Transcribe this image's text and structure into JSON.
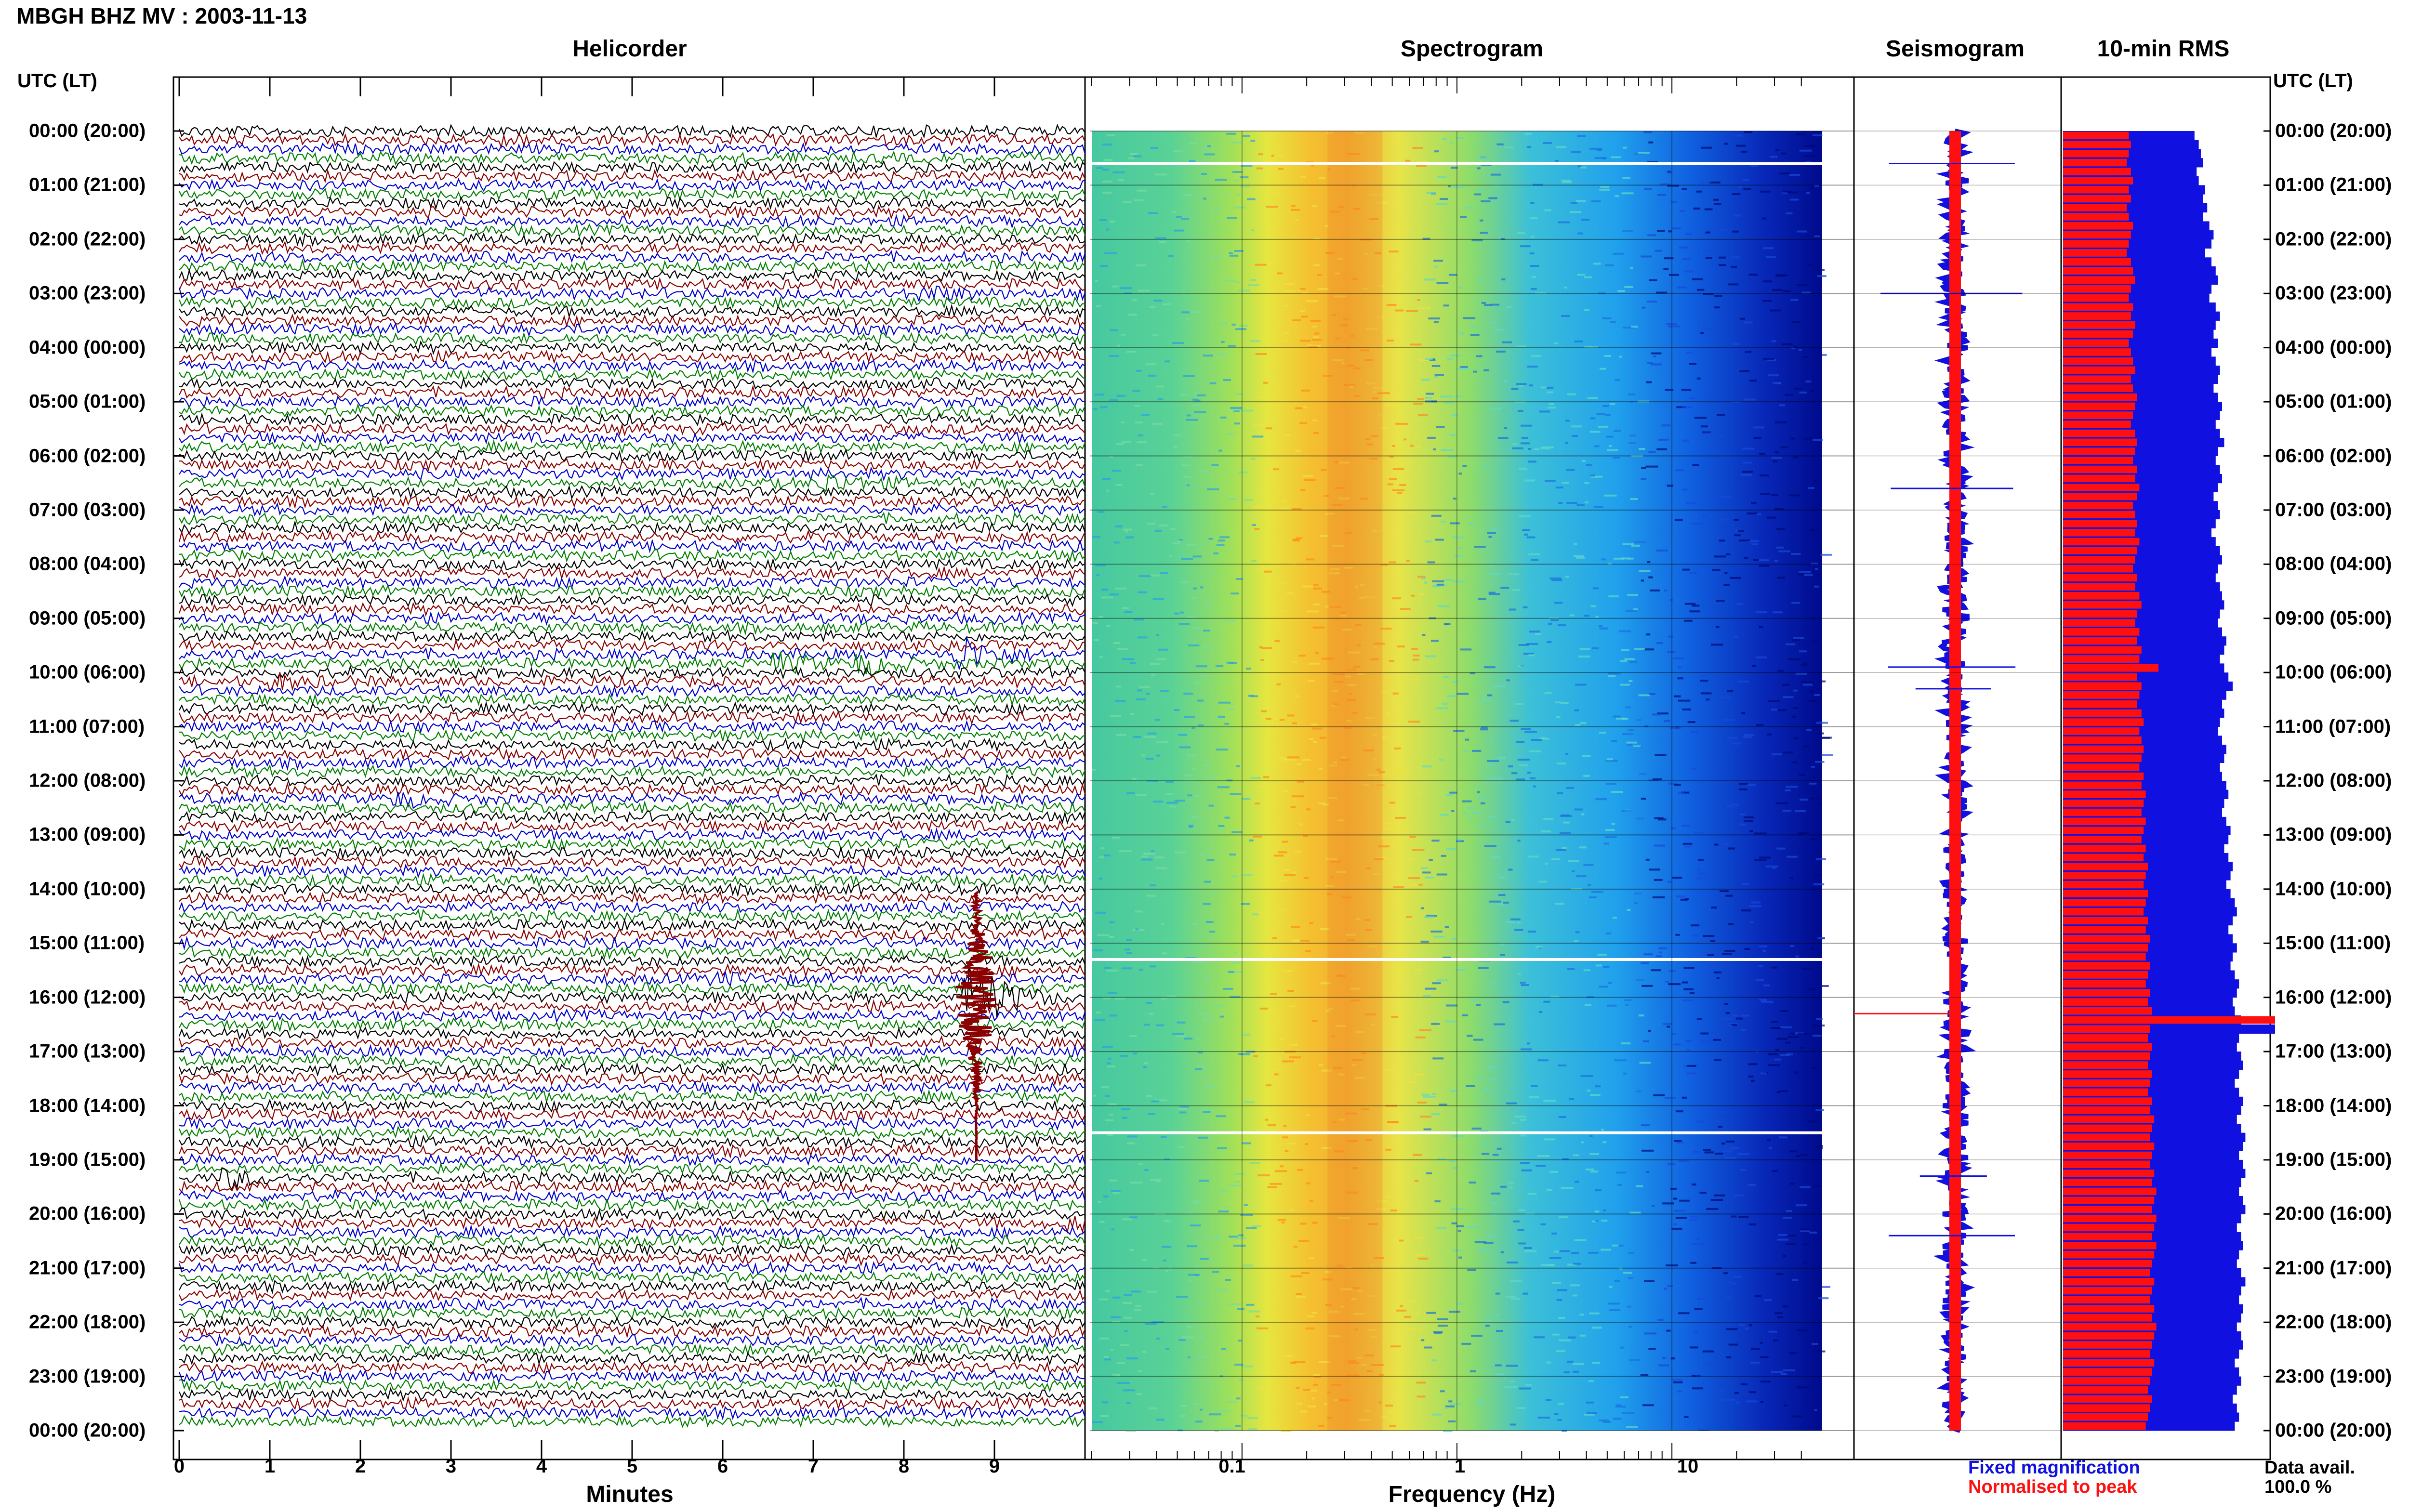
{
  "header": {
    "title": "MBGH BHZ MV : 2003-11-13",
    "panel_titles": {
      "helicorder": "Helicorder",
      "spectrogram": "Spectrogram",
      "seismogram": "Seismogram",
      "rms": "10-min RMS"
    },
    "time_axis_label_left": "UTC (LT)",
    "time_axis_label_right": "UTC (LT)"
  },
  "axes": {
    "helicorder_xlabel": "Minutes",
    "spectrogram_xlabel": "Frequency (Hz)",
    "minute_ticks": [
      "0",
      "1",
      "2",
      "3",
      "4",
      "5",
      "6",
      "7",
      "8",
      "9"
    ],
    "frequency_ticks": [
      "0.1",
      "1",
      "10"
    ]
  },
  "time_labels": [
    "00:00 (20:00)",
    "01:00 (21:00)",
    "02:00 (22:00)",
    "03:00 (23:00)",
    "04:00 (00:00)",
    "05:00 (01:00)",
    "06:00 (02:00)",
    "07:00 (03:00)",
    "08:00 (04:00)",
    "09:00 (05:00)",
    "10:00 (06:00)",
    "11:00 (07:00)",
    "12:00 (08:00)",
    "13:00 (09:00)",
    "14:00 (10:00)",
    "15:00 (11:00)",
    "16:00 (12:00)",
    "17:00 (13:00)",
    "18:00 (14:00)",
    "19:00 (15:00)",
    "20:00 (16:00)",
    "21:00 (17:00)",
    "22:00 (18:00)",
    "23:00 (19:00)",
    "00:00 (20:00)"
  ],
  "legend": {
    "fixed": "Fixed magnification",
    "normalised": "Normalised to peak",
    "fixed_color": "#1010e0",
    "normalised_color": "#ff1010",
    "data_avail_label": "Data avail.",
    "data_avail_value": "100.0 %"
  },
  "trace_colors": [
    "#000000",
    "#8b0000",
    "#0000cd",
    "#008000"
  ],
  "chart_data": [
    {
      "type": "line",
      "panel": "helicorder",
      "xlabel": "Minutes",
      "xlim": [
        0,
        10
      ],
      "rows": 144,
      "row_duration_minutes": 10,
      "events": [
        {
          "hour": 0.1,
          "minute": 3.6,
          "amplitude": 0.6
        },
        {
          "hour": 3.0,
          "minute": 8.3,
          "amplitude": 0.8
        },
        {
          "hour": 6.5,
          "minute": 7.2,
          "amplitude": 1.0
        },
        {
          "hour": 9.6,
          "minute": 8.7,
          "amplitude": 2.0
        },
        {
          "hour": 9.8,
          "minute": 6.7,
          "amplitude": 1.0
        },
        {
          "hour": 9.9,
          "minute": 7.6,
          "amplitude": 1.2
        },
        {
          "hour": 10.2,
          "minute": 1.1,
          "amplitude": 0.8
        },
        {
          "hour": 12.3,
          "minute": 2.5,
          "amplitude": 0.7
        },
        {
          "hour": 15.6,
          "minute": 6.0,
          "amplitude": 0.5
        },
        {
          "hour": 16.0,
          "minute": 8.8,
          "amplitude": 5.0
        },
        {
          "hour": 19.3,
          "minute": 0.6,
          "amplitude": 1.0
        },
        {
          "hour": 20.1,
          "minute": 9.9,
          "amplitude": 0.8
        }
      ]
    },
    {
      "type": "heatmap",
      "panel": "spectrogram",
      "xlabel": "Frequency (Hz)",
      "xscale": "log",
      "xlim": [
        0.02,
        50
      ],
      "peak_frequency_hz": 0.3,
      "gap_hours": [
        0.6,
        15.3,
        18.5
      ]
    },
    {
      "type": "line",
      "panel": "seismogram",
      "spike_hours": [
        0.6,
        3.0,
        6.6,
        9.9,
        10.3,
        16.3,
        19.3,
        20.4
      ]
    },
    {
      "type": "bar",
      "panel": "10-min RMS",
      "series": [
        {
          "name": "Fixed magnification",
          "values": [
            0.62,
            0.64,
            0.65,
            0.66,
            0.63,
            0.64,
            0.67,
            0.66,
            0.68,
            0.66,
            0.69,
            0.71,
            0.7,
            0.67,
            0.7,
            0.72,
            0.73,
            0.7,
            0.69,
            0.72,
            0.74,
            0.72,
            0.71,
            0.73,
            0.7,
            0.72,
            0.74,
            0.73,
            0.71,
            0.73,
            0.75,
            0.74,
            0.72,
            0.74,
            0.76,
            0.73,
            0.72,
            0.74,
            0.75,
            0.73,
            0.71,
            0.73,
            0.74,
            0.72,
            0.7,
            0.72,
            0.74,
            0.75,
            0.73,
            0.72,
            0.74,
            0.75,
            0.76,
            0.74,
            0.73,
            0.75,
            0.77,
            0.76,
            0.74,
            0.76,
            0.78,
            0.8,
            0.77,
            0.75,
            0.76,
            0.74,
            0.73,
            0.75,
            0.77,
            0.76,
            0.74,
            0.75,
            0.77,
            0.78,
            0.76,
            0.75,
            0.77,
            0.79,
            0.78,
            0.76,
            0.78,
            0.8,
            0.79,
            0.77,
            0.79,
            0.81,
            0.82,
            0.8,
            0.78,
            0.8,
            0.82,
            0.8,
            0.79,
            0.81,
            0.83,
            0.82,
            0.8,
            0.81,
            0.84,
            1.0,
            0.83,
            0.82,
            0.84,
            0.85,
            0.83,
            0.81,
            0.83,
            0.85,
            0.84,
            0.82,
            0.84,
            0.86,
            0.85,
            0.83,
            0.85,
            0.86,
            0.84,
            0.83,
            0.85,
            0.86,
            0.84,
            0.82,
            0.84,
            0.85,
            0.83,
            0.82,
            0.84,
            0.86,
            0.84,
            0.83,
            0.85,
            0.84,
            0.82,
            0.84,
            0.85,
            0.83,
            0.81,
            0.83,
            0.84,
            0.82,
            0.8,
            0.82,
            0.83,
            0.81
          ]
        },
        {
          "name": "Normalised to peak",
          "values": [
            0.31,
            0.32,
            0.31,
            0.3,
            0.32,
            0.33,
            0.31,
            0.32,
            0.3,
            0.31,
            0.33,
            0.32,
            0.31,
            0.3,
            0.32,
            0.33,
            0.34,
            0.32,
            0.31,
            0.33,
            0.32,
            0.34,
            0.33,
            0.31,
            0.32,
            0.33,
            0.34,
            0.32,
            0.33,
            0.35,
            0.34,
            0.33,
            0.32,
            0.34,
            0.35,
            0.34,
            0.33,
            0.35,
            0.34,
            0.36,
            0.35,
            0.33,
            0.34,
            0.35,
            0.34,
            0.36,
            0.35,
            0.34,
            0.33,
            0.35,
            0.34,
            0.36,
            0.37,
            0.35,
            0.34,
            0.36,
            0.35,
            0.37,
            0.36,
            0.45,
            0.35,
            0.37,
            0.36,
            0.35,
            0.37,
            0.38,
            0.36,
            0.37,
            0.38,
            0.37,
            0.36,
            0.38,
            0.37,
            0.39,
            0.38,
            0.37,
            0.39,
            0.38,
            0.37,
            0.39,
            0.38,
            0.4,
            0.39,
            0.38,
            0.4,
            0.39,
            0.38,
            0.4,
            0.39,
            0.41,
            0.4,
            0.39,
            0.41,
            0.4,
            0.39,
            0.41,
            0.4,
            0.42,
            1.0,
            0.41,
            0.4,
            0.42,
            0.41,
            0.4,
            0.42,
            0.41,
            0.4,
            0.42,
            0.41,
            0.43,
            0.42,
            0.41,
            0.43,
            0.42,
            0.41,
            0.43,
            0.42,
            0.44,
            0.43,
            0.42,
            0.44,
            0.43,
            0.42,
            0.44,
            0.43,
            0.42,
            0.41,
            0.43,
            0.42,
            0.41,
            0.43,
            0.42,
            0.44,
            0.43,
            0.42,
            0.41,
            0.43,
            0.42,
            0.41,
            0.4,
            0.42,
            0.41,
            0.4,
            0.39
          ]
        }
      ]
    }
  ]
}
